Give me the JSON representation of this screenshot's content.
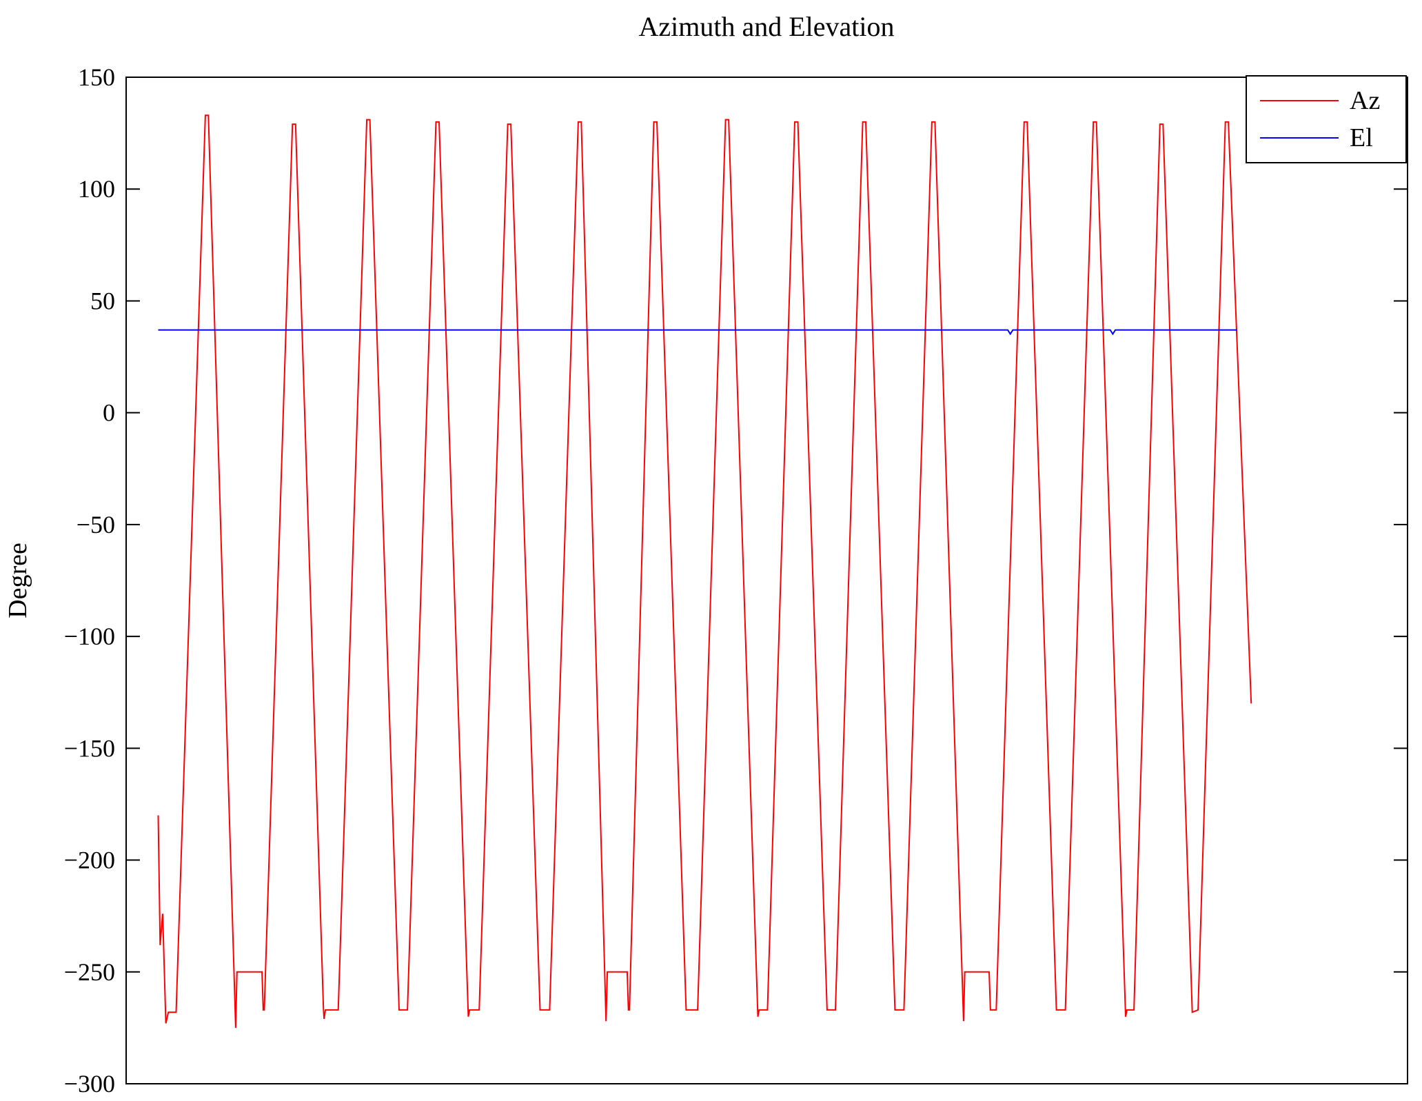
{
  "chart_data": {
    "type": "line",
    "title": "Azimuth and Elevation",
    "xlabel": "",
    "ylabel": "Degree",
    "xlim": [
      0,
      100
    ],
    "ylim": [
      -300,
      150
    ],
    "yticks": [
      150,
      100,
      50,
      0,
      -50,
      -100,
      -150,
      -200,
      -250,
      -300
    ],
    "xtick_labels_visible": false,
    "grid": false,
    "legend_position": "upper right",
    "axis_color": "#000000",
    "background_color": "#ffffff",
    "series": [
      {
        "name": "Az",
        "color": "#ff0000",
        "points": [
          [
            2.5,
            -180
          ],
          [
            2.65,
            -238
          ],
          [
            2.85,
            -224
          ],
          [
            3.1,
            -273
          ],
          [
            3.3,
            -268
          ],
          [
            3.9,
            -268
          ],
          [
            6.18,
            133
          ],
          [
            6.42,
            133
          ],
          [
            8.55,
            -275
          ],
          [
            8.65,
            -250
          ],
          [
            10.6,
            -250
          ],
          [
            10.7,
            -267
          ],
          [
            10.78,
            -267
          ],
          [
            12.98,
            129
          ],
          [
            13.22,
            129
          ],
          [
            15.4,
            -267
          ],
          [
            15.45,
            -271
          ],
          [
            15.55,
            -267
          ],
          [
            16.55,
            -267
          ],
          [
            18.78,
            131
          ],
          [
            19.02,
            131
          ],
          [
            21.3,
            -267
          ],
          [
            21.95,
            -267
          ],
          [
            24.18,
            130
          ],
          [
            24.42,
            130
          ],
          [
            26.7,
            -270
          ],
          [
            26.8,
            -267
          ],
          [
            27.55,
            -267
          ],
          [
            29.78,
            129
          ],
          [
            30.02,
            129
          ],
          [
            32.3,
            -267
          ],
          [
            33.05,
            -267
          ],
          [
            35.28,
            130
          ],
          [
            35.52,
            130
          ],
          [
            37.45,
            -272
          ],
          [
            37.55,
            -250
          ],
          [
            39.1,
            -250
          ],
          [
            39.2,
            -267
          ],
          [
            39.28,
            -267
          ],
          [
            41.18,
            130
          ],
          [
            41.42,
            130
          ],
          [
            43.7,
            -267
          ],
          [
            44.6,
            -267
          ],
          [
            46.78,
            131
          ],
          [
            47.02,
            131
          ],
          [
            49.3,
            -270
          ],
          [
            49.4,
            -267
          ],
          [
            50.05,
            -267
          ],
          [
            52.18,
            130
          ],
          [
            52.42,
            130
          ],
          [
            54.7,
            -267
          ],
          [
            55.35,
            -267
          ],
          [
            57.48,
            130
          ],
          [
            57.72,
            130
          ],
          [
            60.0,
            -267
          ],
          [
            60.7,
            -267
          ],
          [
            62.88,
            130
          ],
          [
            63.12,
            130
          ],
          [
            65.35,
            -272
          ],
          [
            65.45,
            -250
          ],
          [
            67.35,
            -250
          ],
          [
            67.45,
            -267
          ],
          [
            67.9,
            -267
          ],
          [
            70.08,
            130
          ],
          [
            70.32,
            130
          ],
          [
            72.6,
            -267
          ],
          [
            73.3,
            -267
          ],
          [
            75.48,
            130
          ],
          [
            75.72,
            130
          ],
          [
            78.0,
            -270
          ],
          [
            78.1,
            -267
          ],
          [
            78.65,
            -267
          ],
          [
            80.68,
            129
          ],
          [
            80.92,
            129
          ],
          [
            83.2,
            -268
          ],
          [
            83.65,
            -267
          ],
          [
            85.78,
            130
          ],
          [
            86.02,
            130
          ],
          [
            87.8,
            -130
          ]
        ]
      },
      {
        "name": "El",
        "color": "#0000ff",
        "points": [
          [
            2.5,
            37
          ],
          [
            68.8,
            37
          ],
          [
            69.0,
            35.2
          ],
          [
            69.2,
            37
          ],
          [
            76.8,
            37
          ],
          [
            77.0,
            35.2
          ],
          [
            77.2,
            37
          ],
          [
            86.7,
            37
          ]
        ]
      }
    ]
  }
}
